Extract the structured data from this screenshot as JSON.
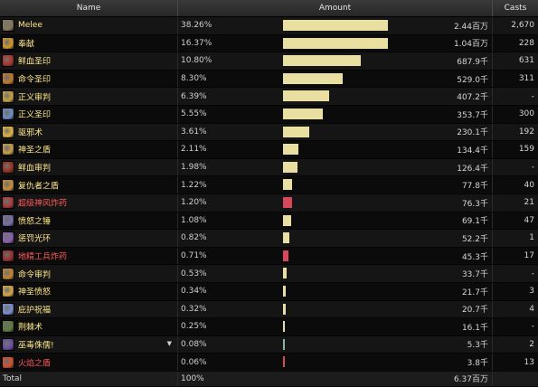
{
  "header": {
    "name": "Name",
    "amount": "Amount",
    "casts": "Casts"
  },
  "rows": [
    {
      "name": "Melee",
      "pct": "38.26%",
      "fraction": 0.3826,
      "amount": "2.44百万",
      "casts": "2,670",
      "kind": "friendly",
      "bar_color": "#e8dfa0",
      "icon_color": "#8a7a5a"
    },
    {
      "name": "奉献",
      "pct": "16.37%",
      "fraction": 0.1637,
      "amount": "1.04百万",
      "casts": "228",
      "kind": "friendly",
      "bar_color": "#e8dfa0",
      "icon_color": "#d49a2a"
    },
    {
      "name": "鲜血圣印",
      "pct": "10.80%",
      "fraction": 0.108,
      "amount": "687.9千",
      "casts": "631",
      "kind": "friendly",
      "bar_color": "#e8dfa0",
      "icon_color": "#b0332a"
    },
    {
      "name": "命令圣印",
      "pct": "8.30%",
      "fraction": 0.083,
      "amount": "529.0千",
      "casts": "311",
      "kind": "friendly",
      "bar_color": "#e8dfa0",
      "icon_color": "#c47a2a"
    },
    {
      "name": "正义审判",
      "pct": "6.39%",
      "fraction": 0.0639,
      "amount": "407.2千",
      "casts": "-",
      "kind": "friendly",
      "bar_color": "#e8dfa0",
      "icon_color": "#c9a23c"
    },
    {
      "name": "正义圣印",
      "pct": "5.55%",
      "fraction": 0.0555,
      "amount": "353.7千",
      "casts": "300",
      "kind": "friendly",
      "bar_color": "#e8dfa0",
      "icon_color": "#6e8fc4"
    },
    {
      "name": "驱邪术",
      "pct": "3.61%",
      "fraction": 0.0361,
      "amount": "230.1千",
      "casts": "192",
      "kind": "friendly",
      "bar_color": "#e8dfa0",
      "icon_color": "#e0b640"
    },
    {
      "name": "神圣之盾",
      "pct": "2.11%",
      "fraction": 0.0211,
      "amount": "134.4千",
      "casts": "159",
      "kind": "friendly",
      "bar_color": "#e8dfa0",
      "icon_color": "#c9a044"
    },
    {
      "name": "鲜血审判",
      "pct": "1.98%",
      "fraction": 0.0198,
      "amount": "126.4千",
      "casts": "-",
      "kind": "friendly",
      "bar_color": "#e8dfa0",
      "icon_color": "#9c2f22"
    },
    {
      "name": "复仇者之盾",
      "pct": "1.22%",
      "fraction": 0.0122,
      "amount": "77.8千",
      "casts": "40",
      "kind": "friendly",
      "bar_color": "#e8dfa0",
      "icon_color": "#c99033"
    },
    {
      "name": "超级神风炸药",
      "pct": "1.20%",
      "fraction": 0.012,
      "amount": "76.3千",
      "casts": "21",
      "kind": "hostile",
      "bar_color": "#d8485a",
      "icon_color": "#a83a3a"
    },
    {
      "name": "愤怒之锤",
      "pct": "1.08%",
      "fraction": 0.0108,
      "amount": "69.1千",
      "casts": "47",
      "kind": "friendly",
      "bar_color": "#e8dfa0",
      "icon_color": "#7a6fa8"
    },
    {
      "name": "惩罚光环",
      "pct": "0.82%",
      "fraction": 0.0082,
      "amount": "52.2千",
      "casts": "1",
      "kind": "friendly",
      "bar_color": "#e8dfa0",
      "icon_color": "#8a5fb0"
    },
    {
      "name": "地精工兵炸药",
      "pct": "0.71%",
      "fraction": 0.0071,
      "amount": "45.3千",
      "casts": "17",
      "kind": "hostile",
      "bar_color": "#d8485a",
      "icon_color": "#9a3030"
    },
    {
      "name": "命令审判",
      "pct": "0.53%",
      "fraction": 0.0053,
      "amount": "33.7千",
      "casts": "-",
      "kind": "friendly",
      "bar_color": "#e8dfa0",
      "icon_color": "#c4862e"
    },
    {
      "name": "神圣愤怒",
      "pct": "0.34%",
      "fraction": 0.0034,
      "amount": "21.7千",
      "casts": "3",
      "kind": "friendly",
      "bar_color": "#e8dfa0",
      "icon_color": "#d9a845"
    },
    {
      "name": "庇护祝福",
      "pct": "0.32%",
      "fraction": 0.0032,
      "amount": "20.7千",
      "casts": "4",
      "kind": "friendly",
      "bar_color": "#e8dfa0",
      "icon_color": "#7b8fd0"
    },
    {
      "name": "荆棘术",
      "pct": "0.25%",
      "fraction": 0.0025,
      "amount": "16.1千",
      "casts": "-",
      "kind": "friendly",
      "bar_color": "#e8dfa0",
      "icon_color": "#5e7e3a"
    },
    {
      "name": "巫毒侏儒!",
      "pct": "0.08%",
      "fraction": 0.0008,
      "amount": "5.3千",
      "casts": "2",
      "kind": "friendly",
      "bar_color": "#88b898",
      "icon_color": "#6a4fa0",
      "has_caret": true
    },
    {
      "name": "火焰之盾",
      "pct": "0.06%",
      "fraction": 0.0006,
      "amount": "3.8千",
      "casts": "13",
      "kind": "hostile",
      "bar_color": "#d8485a",
      "icon_color": "#d4502a"
    }
  ],
  "total": {
    "label": "Total",
    "pct": "100%",
    "amount": "6.37百万",
    "casts": ""
  }
}
